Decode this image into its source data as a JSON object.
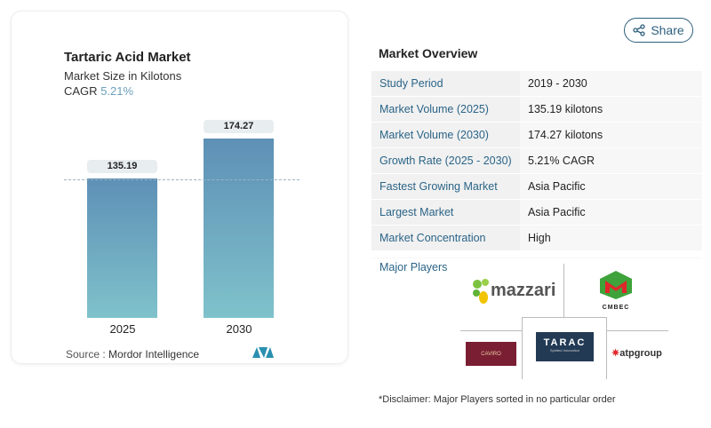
{
  "chart": {
    "title": "Tartaric Acid Market",
    "subtitle": "Market Size in Kilotons",
    "cagr_label": "CAGR",
    "cagr_value": "5.21%",
    "source_label": "Source :",
    "source_value": "Mordor Intelligence"
  },
  "chart_data": {
    "type": "bar",
    "title": "Tartaric Acid Market",
    "categories": [
      "2025",
      "2030"
    ],
    "values": [
      135.19,
      174.27
    ],
    "labels": [
      "135.19",
      "174.27"
    ],
    "ylim": [
      0,
      174.27
    ],
    "colors": [
      "#5e90b6",
      "#7fc2cb"
    ]
  },
  "share": {
    "label": "Share",
    "icon": "share-icon"
  },
  "overview": {
    "title": "Market Overview",
    "rows": [
      {
        "key": "Study Period",
        "value": "2019 - 2030"
      },
      {
        "key": "Market Volume (2025)",
        "value": "135.19 kilotons"
      },
      {
        "key": "Market Volume (2030)",
        "value": "174.27 kilotons"
      },
      {
        "key": "Growth Rate (2025 - 2030)",
        "value": "5.21% CAGR"
      },
      {
        "key": "Fastest Growing Market",
        "value": "Asia Pacific"
      },
      {
        "key": "Largest Market",
        "value": "Asia Pacific"
      },
      {
        "key": "Market Concentration",
        "value": "High"
      }
    ],
    "major_players_label": "Major Players",
    "players": [
      "mazzari",
      "CMBEC",
      "CAVIRO",
      "TARAC",
      "atpgroup"
    ],
    "tarac_tagline": "Spirited Innovation",
    "disclaimer": "*Disclaimer: Major Players sorted in no particular order"
  }
}
